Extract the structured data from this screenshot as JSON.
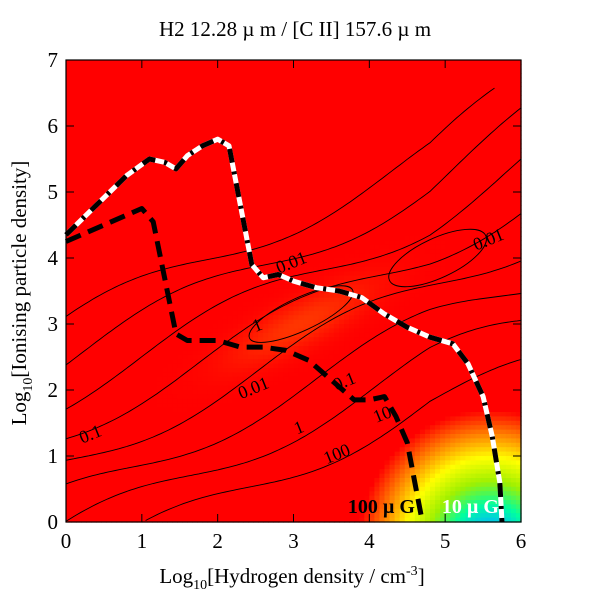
{
  "chart_data": {
    "type": "heatmap",
    "title": "H2 12.28 µ m / [C II] 157.6 µ m",
    "xlabel": "Log",
    "xlabel_sub": "10",
    "xlabel_rest": "[Hydrogen density / cm",
    "xlabel_sup": "-3",
    "xlabel_close": "]",
    "ylabel": "Log",
    "ylabel_sub": "10",
    "ylabel_rest": "[Ionising particle density]",
    "xlim": [
      0,
      6
    ],
    "ylim": [
      0,
      7
    ],
    "x_ticks": [
      "0",
      "1",
      "2",
      "3",
      "4",
      "5",
      "6"
    ],
    "y_ticks": [
      "0",
      "1",
      "2",
      "3",
      "4",
      "5",
      "6",
      "7"
    ],
    "colormap": [
      "#0000c8",
      "#00b4ff",
      "#00ffa0",
      "#a0f000",
      "#ffff00",
      "#ff8000",
      "#ff0000"
    ],
    "contour_labels": [
      {
        "text": "0.01",
        "x": 3.0,
        "y": 3.85
      },
      {
        "text": "0.01",
        "x": 5.6,
        "y": 4.2
      },
      {
        "text": "1",
        "x": 2.55,
        "y": 2.9
      },
      {
        "text": "0.01",
        "x": 2.5,
        "y": 1.95
      },
      {
        "text": "0.1",
        "x": 3.7,
        "y": 2.05
      },
      {
        "text": "0.1",
        "x": 0.35,
        "y": 1.25
      },
      {
        "text": "1",
        "x": 3.1,
        "y": 1.35
      },
      {
        "text": "100",
        "x": 3.6,
        "y": 0.95
      },
      {
        "text": "10",
        "x": 4.2,
        "y": 1.55
      }
    ],
    "series": [
      {
        "name": "100 µ G",
        "style": "black-dashed",
        "x": [
          0.0,
          0.5,
          1.0,
          1.15,
          1.3,
          1.45,
          1.6,
          1.8,
          2.0,
          2.3,
          2.6,
          2.9,
          3.2,
          3.5,
          3.8,
          4.0,
          4.2,
          4.35,
          4.5,
          4.6,
          4.7
        ],
        "y": [
          4.25,
          4.5,
          4.75,
          4.55,
          3.7,
          2.85,
          2.75,
          2.75,
          2.75,
          2.65,
          2.65,
          2.6,
          2.45,
          2.15,
          1.85,
          1.85,
          1.9,
          1.6,
          1.2,
          0.6,
          0.0
        ]
      },
      {
        "name": "10 µ G",
        "style": "white-black-dashed",
        "x": [
          0.0,
          0.4,
          0.8,
          1.1,
          1.3,
          1.45,
          1.6,
          1.8,
          2.0,
          2.15,
          2.3,
          2.45,
          2.6,
          2.8,
          3.0,
          3.3,
          3.6,
          3.9,
          4.2,
          4.5,
          4.8,
          5.1,
          5.3,
          5.5,
          5.62,
          5.72,
          5.75
        ],
        "y": [
          4.35,
          4.8,
          5.25,
          5.5,
          5.45,
          5.35,
          5.55,
          5.7,
          5.8,
          5.7,
          4.8,
          3.9,
          3.7,
          3.75,
          3.65,
          3.55,
          3.5,
          3.4,
          3.15,
          2.95,
          2.8,
          2.7,
          2.4,
          1.9,
          1.3,
          0.6,
          0.0
        ]
      }
    ],
    "annotations": [
      "100 µ G",
      "10 µ G"
    ]
  }
}
